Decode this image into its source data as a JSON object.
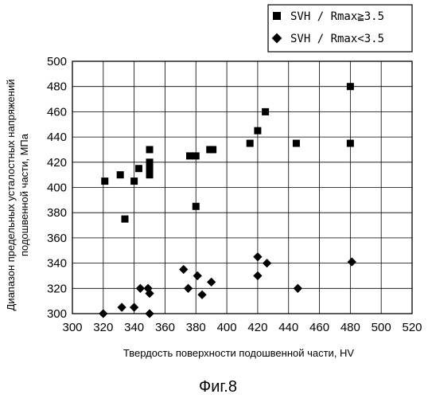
{
  "chart_data": {
    "type": "scatter",
    "xlabel": "Твердость поверхности подошвенной части, HV",
    "ylabel": "Диапазон предельных усталостных напряжений подошвенной части, МПа",
    "ylabel_lines": [
      "Диапазон предельных усталостных напряжений",
      "подошвенной части, МПа"
    ],
    "xlim": [
      300,
      520
    ],
    "ylim": [
      300,
      500
    ],
    "x_ticks": [
      "300",
      "320",
      "340",
      "360",
      "380",
      "400",
      "420",
      "440",
      "460",
      "480",
      "500",
      "520"
    ],
    "y_ticks": [
      "300",
      "320",
      "340",
      "360",
      "380",
      "400",
      "420",
      "440",
      "460",
      "480",
      "500"
    ],
    "grid": true,
    "legend_position": "top-right, outside plot",
    "series": [
      {
        "name": "SVH / Rmax≧3.5",
        "marker": "square",
        "color": "#000000",
        "points": [
          [
            321,
            405
          ],
          [
            331,
            410
          ],
          [
            334,
            375
          ],
          [
            340,
            405
          ],
          [
            343,
            415
          ],
          [
            350,
            430
          ],
          [
            350,
            420
          ],
          [
            350,
            415
          ],
          [
            350,
            410
          ],
          [
            376,
            425
          ],
          [
            380,
            425
          ],
          [
            380,
            385
          ],
          [
            389,
            430
          ],
          [
            391,
            430
          ],
          [
            415,
            435
          ],
          [
            420,
            445
          ],
          [
            425,
            460
          ],
          [
            445,
            435
          ],
          [
            480,
            480
          ],
          [
            480,
            435
          ]
        ]
      },
      {
        "name": "SVH / Rmax<3.5",
        "marker": "diamond",
        "color": "#000000",
        "points": [
          [
            320,
            300
          ],
          [
            332,
            305
          ],
          [
            340,
            305
          ],
          [
            344,
            320
          ],
          [
            349,
            320
          ],
          [
            350,
            316
          ],
          [
            350,
            300
          ],
          [
            372,
            335
          ],
          [
            375,
            320
          ],
          [
            381,
            330
          ],
          [
            384,
            315
          ],
          [
            390,
            325
          ],
          [
            420,
            345
          ],
          [
            420,
            330
          ],
          [
            426,
            340
          ],
          [
            446,
            320
          ],
          [
            481,
            341
          ]
        ]
      }
    ]
  },
  "caption": "Фиг.8"
}
